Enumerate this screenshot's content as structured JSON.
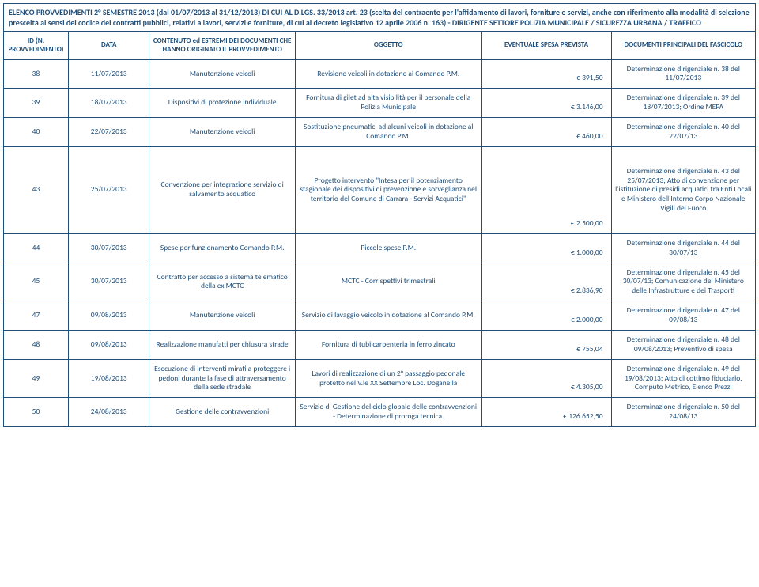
{
  "header": {
    "line1": "ELENCO PROVVEDIMENTI 2° SEMESTRE 2013 (dal 01/07/2013 al 31/12/2013) DI CUI AL D.LGS. 33/2013 art. 23 (scelta del contraente per l'affidamento di lavori, forniture e servizi, anche con riferimento alla modalità di selezione prescelta ai sensi del codice dei contratti pubblici, relativi a lavori, servizi e forniture, di cui al decreto legislativo 12 aprile 2006 n. 163) - DIRIGENTE SETTORE  POLIZIA MUNICIPALE / SICUREZZA URBANA / TRAFFICO"
  },
  "columns": {
    "id": "ID (N. PROVVEDIMENTO)",
    "data": "DATA",
    "contenuto": "CONTENUTO ed ESTREMI DEI DOCUMENTI CHE HANNO ORIGINATO IL PROVVEDIMENTO",
    "oggetto": "OGGETTO",
    "spesa": "EVENTUALE SPESA PREVISTA",
    "docs": "DOCUMENTI PRINCIPALI DEL FASCICOLO"
  },
  "rows": [
    {
      "id": "38",
      "data": "11/07/2013",
      "cont": "Manutenzione veicoli",
      "ogg": "Revisione veicoli in dotazione al Comando P.M.",
      "spesa": "€ 391,50",
      "docs": "Determinazione dirigenziale n. 38 del 11/07/2013"
    },
    {
      "id": "39",
      "data": "18/07/2013",
      "cont": "Dispositivi di protezione individuale",
      "ogg": "Fornitura di gilet ad alta visibilità per il personale della Polizia Municipale",
      "spesa": "€ 3.146,00",
      "docs": "Determinazione dirigenziale n. 39 del 18/07/2013; Ordine MEPA"
    },
    {
      "id": "40",
      "data": "22/07/2013",
      "cont": "Manutenzione veicoli",
      "ogg": "Sostituzione pneumatici ad alcuni veicoli in dotazione al Comando P.M.",
      "spesa": "€ 460,00",
      "docs": "Determinazione dirigenziale n. 40 del 22/07/13"
    },
    {
      "id": "43",
      "data": "25/07/2013",
      "cont": "Convenzione per integrazione servizio di salvamento acquatico",
      "ogg": "Progetto intervento \"Intesa per il potenziamento stagionale dei dispositivi di prevenzione e sorveglianza nel territorio del Comune di Carrara - Servizi Acquatici\"",
      "spesa": "€ 2.500,00",
      "docs": "Determinazione dirigenziale n. 43 del 25/07/2013;  Atto di convenzione per l'istituzione di presidi acquatici tra Enti Locali e Ministero dell'Interno Corpo Nazionale Vigili del Fuoco",
      "tall": true
    },
    {
      "id": "44",
      "data": "30/07/2013",
      "cont": "Spese per funzionamento Comando P.M.",
      "ogg": "Piccole spese P.M.",
      "spesa": "€ 1.000,00",
      "docs": "Determinazione dirigenziale n. 44 del 30/07/13"
    },
    {
      "id": "45",
      "data": "30/07/2013",
      "cont": "Contratto per accesso a sistema telematico della ex MCTC",
      "ogg": "MCTC - Corrispettivi trimestrali",
      "spesa": "€ 2.836,90",
      "docs": "Determinazione dirigenziale n. 45 del 30/07/13; Comunicazione del Ministero delle Infrastrutture e dei Trasporti"
    },
    {
      "id": "47",
      "data": "09/08/2013",
      "cont": "Manutenzione veicoli",
      "ogg": "Servizio di lavaggio veicolo in dotazione al Comando P.M.",
      "spesa": "€ 2.000,00",
      "docs": "Determinazione dirigenziale n. 47 del 09/08/13"
    },
    {
      "id": "48",
      "data": "09/08/2013",
      "cont": "Realizzazione manufatti per chiusura strade",
      "ogg": "Fornitura di tubi carpenteria in ferro zincato",
      "spesa": "€ 755,04",
      "docs": "Determinazione dirigenziale n. 48 del 09/08/2013; Preventivo di spesa"
    },
    {
      "id": "49",
      "data": "19/08/2013",
      "cont": "Esecuzione di interventi mirati a proteggere i pedoni durante la fase di attraversamento della sede stradale",
      "ogg": "Lavori di realizzazione di un 2° passaggio pedonale protetto nel V.le XX Settembre Loc. Doganella",
      "spesa": "€ 4.305,00",
      "docs": "Determinazione dirigenziale n. 49 del 19/08/2013; Atto di cottimo fiduciario, Computo Metrico, Elenco Prezzi"
    },
    {
      "id": "50",
      "data": "24/08/2013",
      "cont": "Gestione delle contravvenzioni",
      "ogg": "Servizio di Gestione del ciclo globale delle contravvenzioni - Determinazione di proroga tecnica.",
      "spesa": "€ 126.652,50",
      "docs": "Determinazione dirigenziale n. 50 del 24/08/13"
    }
  ],
  "style": {
    "border_color": "#1f4e79",
    "text_color": "#1f4e79",
    "font_size_header": 10,
    "font_size_th": 9,
    "font_size_td": 9.5
  }
}
